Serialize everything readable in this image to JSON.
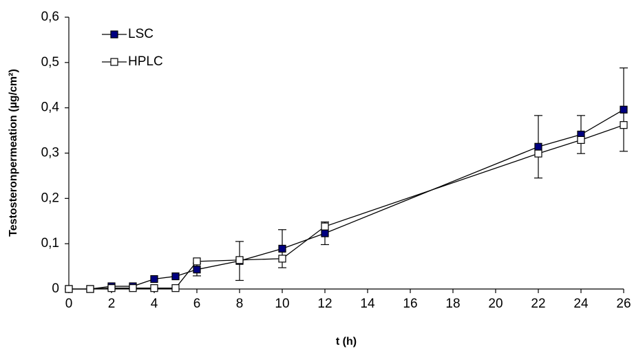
{
  "chart_data": {
    "type": "line",
    "xlabel": "t (h)",
    "ylabel": "Testosteronpermeation (µg/cm²)",
    "x": [
      0,
      1,
      2,
      3,
      4,
      5,
      6,
      8,
      10,
      12,
      22,
      24,
      26
    ],
    "series": [
      {
        "name": "LSC",
        "color": "#000080",
        "marker": "filled",
        "values": [
          0,
          0,
          0.006,
          0.006,
          0.022,
          0.028,
          0.043,
          0.062,
          0.089,
          0.123,
          0.314,
          0.341,
          0.396
        ],
        "errors": [
          null,
          null,
          null,
          null,
          null,
          null,
          0.014,
          0.043,
          0.042,
          0.025,
          0.069,
          0.042,
          0.092
        ]
      },
      {
        "name": "HPLC",
        "color": "#ffffff",
        "marker": "open",
        "values": [
          0,
          0,
          0.002,
          0.002,
          0.002,
          0.002,
          0.061,
          0.064,
          0.067,
          0.138,
          0.299,
          0.329,
          0.362
        ]
      }
    ],
    "xlim": [
      0,
      26
    ],
    "xticks": [
      0,
      2,
      4,
      6,
      8,
      10,
      12,
      14,
      16,
      18,
      20,
      22,
      24,
      26
    ],
    "ylim": [
      0,
      0.6
    ],
    "yticks": [
      0,
      {
        "value": 0.1,
        "label": "0,1"
      },
      {
        "value": 0.2,
        "label": "0,2"
      },
      {
        "value": 0.3,
        "label": "0,3"
      },
      {
        "value": 0.4,
        "label": "0,4"
      },
      {
        "value": 0.5,
        "label": "0,5"
      },
      {
        "value": 0.6,
        "label": "0,6"
      }
    ],
    "grid": false,
    "legend": "upper left"
  }
}
